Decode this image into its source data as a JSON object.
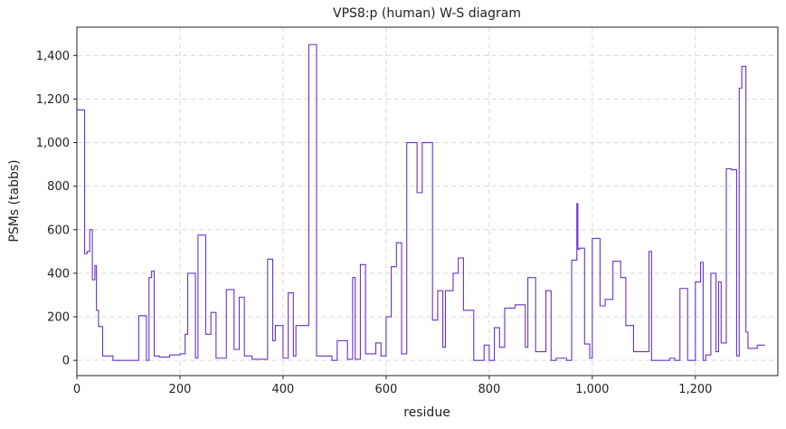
{
  "chart_data": {
    "type": "line",
    "drawstyle": "steps-post",
    "title": "VPS8:p (human) W-S diagram",
    "xlabel": "residue",
    "ylabel": "PSMs (tabbs)",
    "color": "#6633cc",
    "grid": true,
    "xlim": [
      0,
      1360
    ],
    "ylim": [
      -70,
      1530
    ],
    "xticks": [
      0,
      200,
      400,
      600,
      800,
      {
        "value": 1000,
        "label": "1,000"
      },
      {
        "value": 1200,
        "label": "1,200"
      }
    ],
    "yticks": [
      0,
      200,
      400,
      600,
      800,
      {
        "value": 1000,
        "label": "1,000"
      },
      {
        "value": 1200,
        "label": "1,200"
      },
      {
        "value": 1400,
        "label": "1,400"
      }
    ],
    "x": [
      0,
      15,
      20,
      25,
      30,
      35,
      38,
      42,
      50,
      70,
      120,
      135,
      140,
      145,
      150,
      160,
      180,
      200,
      210,
      215,
      230,
      235,
      250,
      260,
      270,
      290,
      305,
      315,
      325,
      340,
      370,
      380,
      385,
      400,
      410,
      420,
      425,
      450,
      465,
      495,
      505,
      525,
      535,
      540,
      550,
      560,
      580,
      590,
      600,
      610,
      620,
      630,
      640,
      660,
      670,
      690,
      700,
      710,
      715,
      730,
      740,
      750,
      770,
      790,
      800,
      810,
      820,
      830,
      850,
      870,
      875,
      890,
      910,
      920,
      930,
      950,
      960,
      970,
      972,
      975,
      985,
      995,
      1000,
      1015,
      1025,
      1040,
      1055,
      1065,
      1080,
      1110,
      1115,
      1150,
      1160,
      1170,
      1185,
      1200,
      1210,
      1215,
      1220,
      1230,
      1240,
      1245,
      1250,
      1260,
      1270,
      1280,
      1285,
      1290,
      1298,
      1302,
      1320,
      1335
    ],
    "values": [
      1150,
      490,
      500,
      600,
      370,
      435,
      230,
      155,
      20,
      0,
      205,
      0,
      380,
      410,
      20,
      15,
      25,
      30,
      120,
      400,
      10,
      575,
      120,
      220,
      10,
      325,
      50,
      290,
      20,
      5,
      465,
      90,
      160,
      10,
      310,
      20,
      160,
      1450,
      20,
      0,
      90,
      5,
      380,
      5,
      440,
      30,
      80,
      20,
      200,
      430,
      540,
      30,
      1000,
      770,
      1000,
      185,
      320,
      60,
      320,
      400,
      470,
      230,
      0,
      70,
      0,
      150,
      60,
      240,
      255,
      60,
      380,
      40,
      320,
      0,
      10,
      0,
      460,
      720,
      510,
      515,
      75,
      10,
      560,
      250,
      280,
      455,
      380,
      160,
      40,
      500,
      0,
      10,
      0,
      330,
      0,
      360,
      450,
      0,
      25,
      400,
      40,
      360,
      80,
      880,
      875,
      20,
      1250,
      1350,
      130,
      55,
      70,
      70
    ]
  }
}
